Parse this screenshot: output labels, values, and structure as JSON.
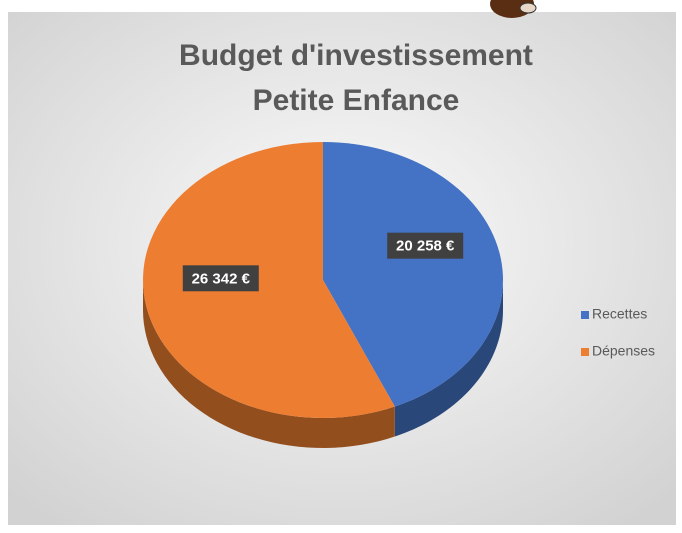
{
  "chart_data": {
    "type": "pie",
    "title": [
      "Budget d'investissement",
      "Petite Enfance"
    ],
    "categories": [
      "Recettes",
      "Dépenses"
    ],
    "values": [
      20258,
      26342
    ],
    "value_labels": [
      "20 258 €",
      "26 342 €"
    ],
    "colors": [
      "#4472c4",
      "#ed7d31"
    ],
    "legend": "right"
  }
}
